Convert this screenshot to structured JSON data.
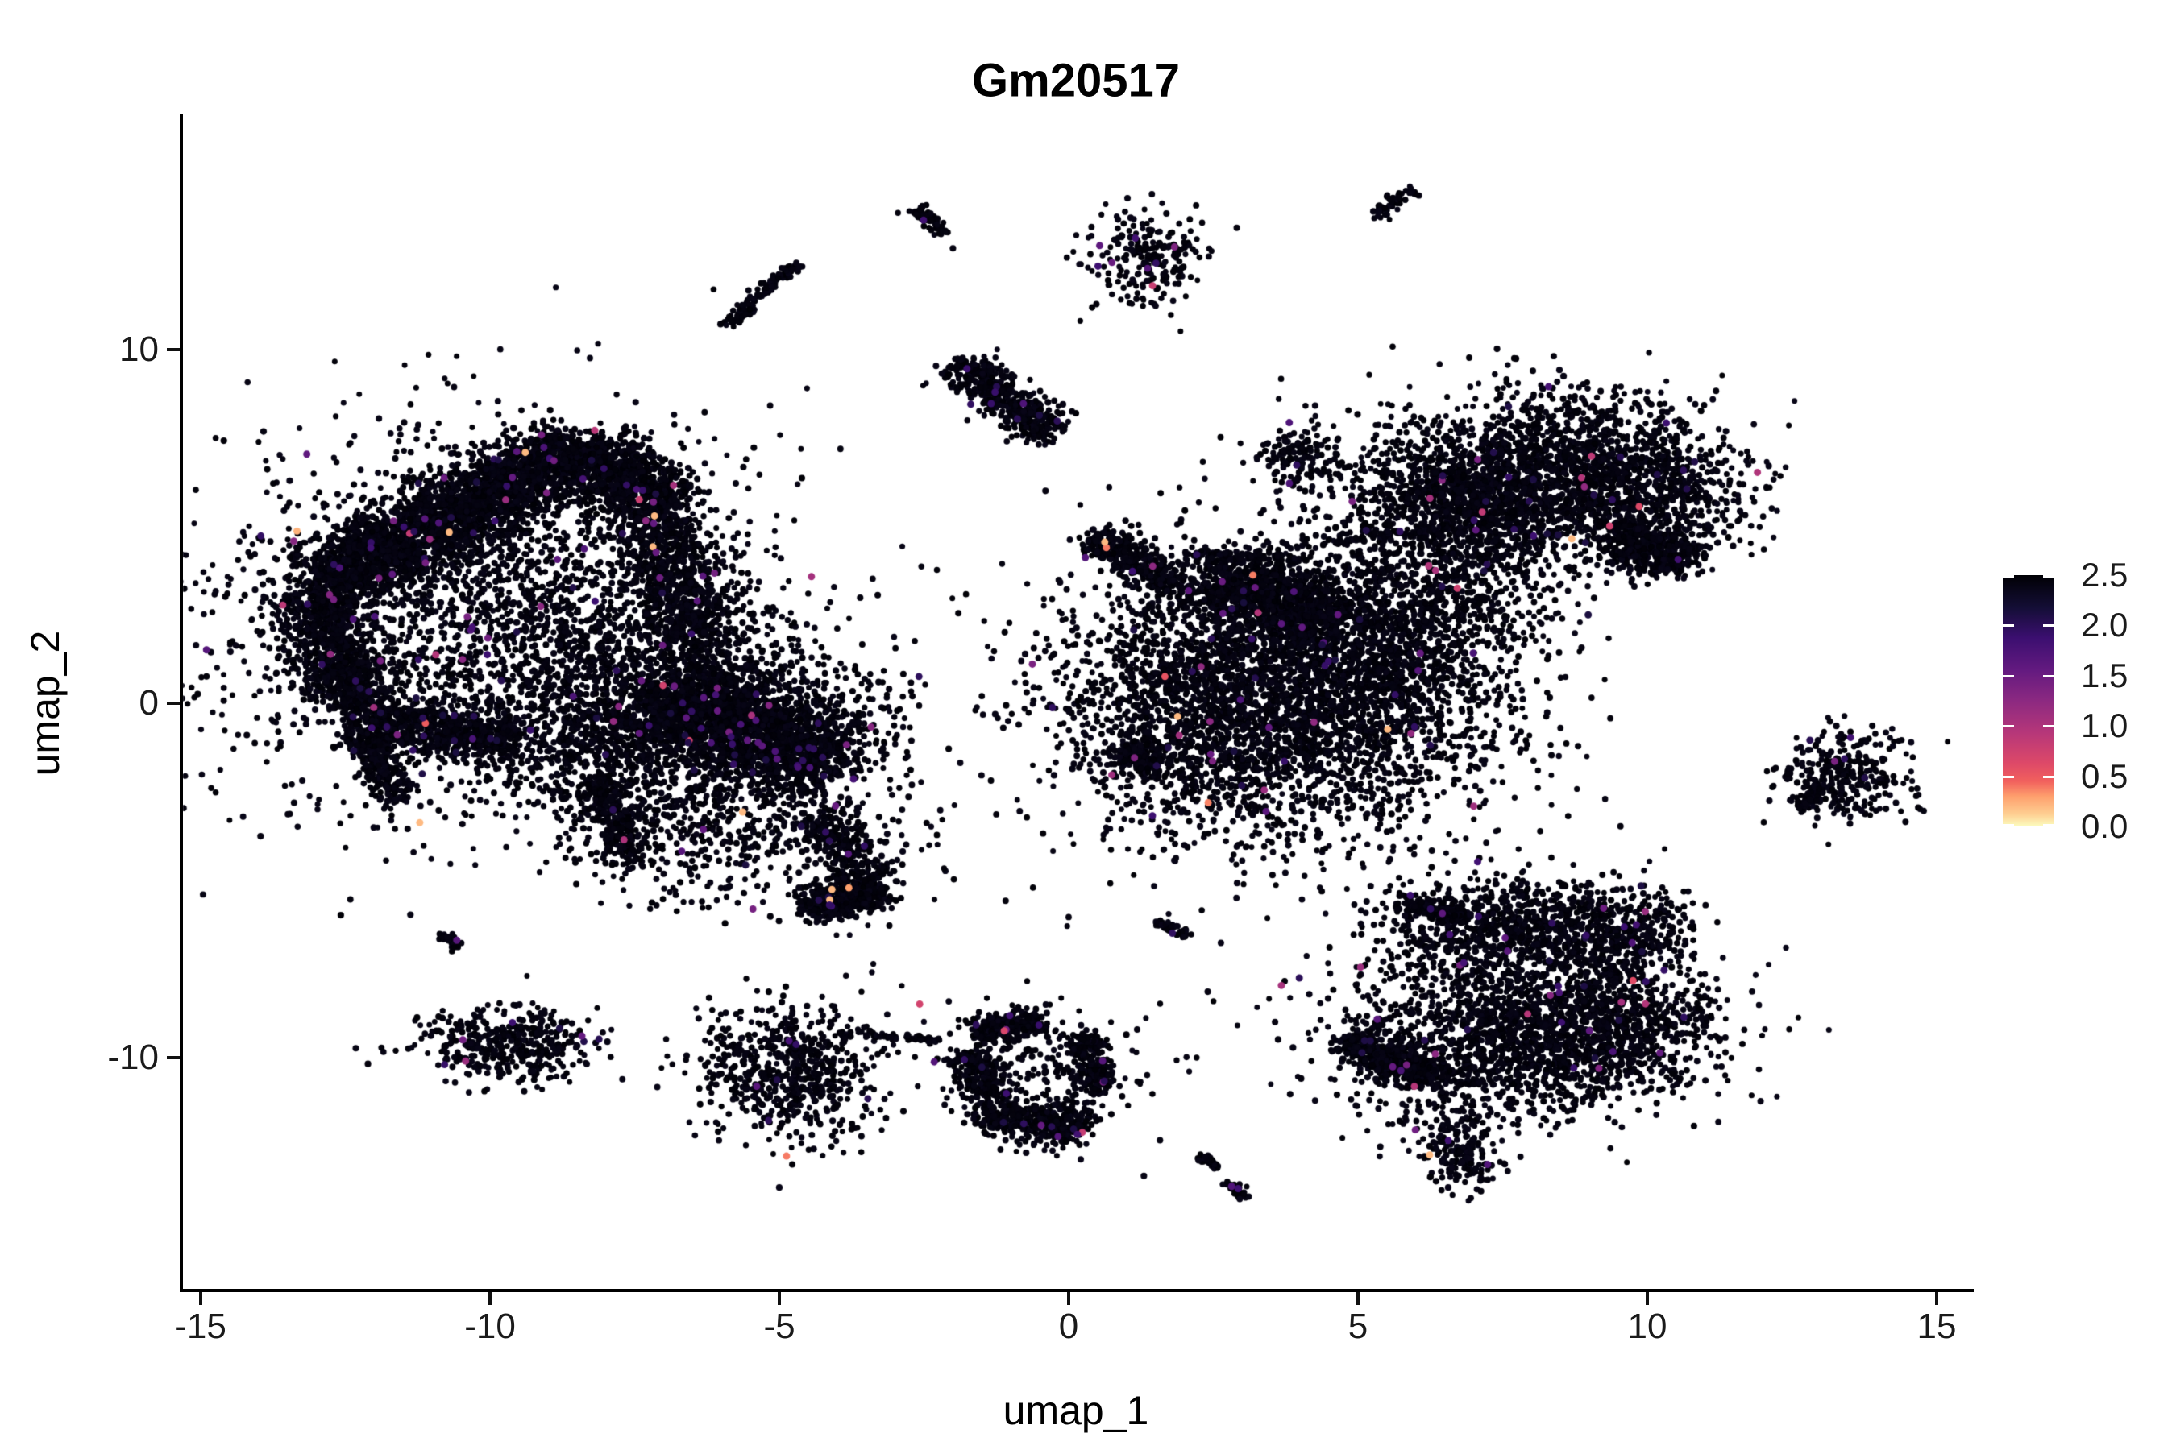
{
  "title": "Gm20517",
  "axes": {
    "x": {
      "label": "umap_1",
      "tick_labels": [
        "-15",
        "-10",
        "-5",
        "0",
        "5",
        "10",
        "15"
      ],
      "tick_values": [
        -15,
        -10,
        -5,
        0,
        5,
        10,
        15
      ]
    },
    "y": {
      "label": "umap_2",
      "tick_labels": [
        "10",
        "0",
        "-10"
      ],
      "tick_values": [
        10,
        0,
        -10
      ]
    }
  },
  "legend": {
    "tick_labels": [
      "2.5",
      "2.0",
      "1.5",
      "1.0",
      "0.5",
      "0.0"
    ],
    "tick_values": [
      2.5,
      2.0,
      1.5,
      1.0,
      0.5,
      0.0
    ],
    "min": 0.0,
    "max": 2.5,
    "colormap": "magma"
  },
  "colors": {
    "background": "#ffffff",
    "axis": "#000000",
    "tick_text": "#1a1a1a",
    "point_base": "#050210",
    "magma_stops": [
      [
        0.0,
        "#000004"
      ],
      [
        0.13,
        "#140e36"
      ],
      [
        0.25,
        "#3b0f70"
      ],
      [
        0.38,
        "#641a80"
      ],
      [
        0.5,
        "#8c2981"
      ],
      [
        0.63,
        "#b73779"
      ],
      [
        0.75,
        "#de4968"
      ],
      [
        0.82,
        "#f1605d"
      ],
      [
        0.88,
        "#fe9f6d"
      ],
      [
        0.95,
        "#fece91"
      ],
      [
        1.0,
        "#fcfdbf"
      ]
    ]
  },
  "chart_data": {
    "type": "scatter",
    "title": "Gm20517",
    "xlabel": "umap_1",
    "ylabel": "umap_2",
    "xlim": [
      -15.3,
      15.6
    ],
    "ylim": [
      -16.6,
      16.6
    ],
    "grid": false,
    "legend_position": "right",
    "expression_range": [
      0.0,
      2.5
    ],
    "colored_fraction": 0.014,
    "point_radius_px": 3.8,
    "seed": 42,
    "clusters": [
      {
        "t": "band",
        "x1": -12.9,
        "y1": 3.3,
        "x2": -8.5,
        "y2": 7.2,
        "w": 0.95,
        "n": 2600
      },
      {
        "t": "band",
        "x1": -8.5,
        "y1": 7.2,
        "x2": -6.9,
        "y2": 5.6,
        "w": 0.85,
        "n": 900
      },
      {
        "t": "band",
        "x1": -13.1,
        "y1": 3.0,
        "x2": -12.3,
        "y2": 0.0,
        "w": 0.75,
        "n": 800
      },
      {
        "t": "band",
        "x1": -12.4,
        "y1": -0.4,
        "x2": -9.6,
        "y2": -1.1,
        "w": 0.7,
        "n": 700
      },
      {
        "t": "band",
        "x1": -12.2,
        "y1": -0.9,
        "x2": -11.6,
        "y2": -2.7,
        "w": 0.4,
        "n": 260
      },
      {
        "t": "blob",
        "x": -9.9,
        "y": 2.3,
        "rx": 2.4,
        "ry": 2.7,
        "n": 2700
      },
      {
        "t": "band",
        "x1": -7.1,
        "y1": 5.3,
        "x2": -6.5,
        "y2": 1.8,
        "w": 0.85,
        "n": 700
      },
      {
        "t": "blob",
        "x": -6.4,
        "y": 0.8,
        "rx": 0.9,
        "ry": 1.2,
        "n": 500
      },
      {
        "t": "blob",
        "x": -7.9,
        "y": -1.0,
        "rx": 1.0,
        "ry": 1.4,
        "n": 900
      },
      {
        "t": "band",
        "x1": -6.9,
        "y1": 0.3,
        "x2": -4.2,
        "y2": -1.9,
        "w": 1.3,
        "n": 1700
      },
      {
        "t": "blob",
        "x": -5.3,
        "y": -0.4,
        "rx": 1.3,
        "ry": 0.9,
        "n": 600
      },
      {
        "t": "blob",
        "x": -5.2,
        "y": -3.2,
        "rx": 1.5,
        "ry": 1.1,
        "n": 420
      },
      {
        "t": "band",
        "x1": -4.4,
        "y1": -3.1,
        "x2": -3.3,
        "y2": -5.1,
        "w": 0.5,
        "n": 240
      },
      {
        "t": "band",
        "x1": -4.6,
        "y1": -5.8,
        "x2": -3.2,
        "y2": -5.3,
        "w": 0.5,
        "n": 520
      },
      {
        "t": "band",
        "x1": -8.1,
        "y1": -2.1,
        "x2": -7.5,
        "y2": -4.6,
        "w": 0.4,
        "n": 240
      },
      {
        "t": "blob",
        "x": -6.3,
        "y": -4.5,
        "rx": 0.8,
        "ry": 0.8,
        "n": 80
      },
      {
        "t": "poly",
        "pts": [
          [
            -5.85,
            10.65
          ],
          [
            -5.25,
            11.75
          ],
          [
            -4.65,
            12.4
          ]
        ],
        "w": 0.16,
        "n": 130
      },
      {
        "t": "band",
        "x1": -2.62,
        "y1": 14.0,
        "x2": -2.15,
        "y2": 13.25,
        "w": 0.14,
        "n": 55
      },
      {
        "t": "blob",
        "x": 1.35,
        "y": 12.6,
        "rx": 0.5,
        "ry": 0.7,
        "n": 230
      },
      {
        "t": "band",
        "x1": 5.3,
        "y1": 13.75,
        "x2": 5.95,
        "y2": 14.55,
        "w": 0.2,
        "n": 60
      },
      {
        "t": "band",
        "x1": -1.85,
        "y1": 9.6,
        "x2": -0.35,
        "y2": 7.6,
        "w": 0.55,
        "n": 480
      },
      {
        "t": "blob",
        "x": 8.3,
        "y": 6.7,
        "rx": 1.4,
        "ry": 1.05,
        "n": 1500
      },
      {
        "t": "blob",
        "x": 6.5,
        "y": 5.9,
        "rx": 0.9,
        "ry": 0.8,
        "n": 600
      },
      {
        "t": "blob",
        "x": 10.1,
        "y": 5.9,
        "rx": 0.85,
        "ry": 0.85,
        "n": 480
      },
      {
        "t": "band",
        "x1": 9.5,
        "y1": 4.9,
        "x2": 10.6,
        "y2": 3.9,
        "w": 0.7,
        "n": 420
      },
      {
        "t": "blob",
        "x": 7.3,
        "y": 4.9,
        "rx": 1.0,
        "ry": 0.7,
        "n": 400
      },
      {
        "t": "band",
        "x1": 0.45,
        "y1": 4.8,
        "x2": 1.8,
        "y2": 3.3,
        "w": 0.5,
        "n": 360
      },
      {
        "t": "band",
        "x1": 2.4,
        "y1": 3.7,
        "x2": 4.6,
        "y2": 2.3,
        "w": 1.0,
        "n": 900
      },
      {
        "t": "blob",
        "x": 3.7,
        "y": 0.2,
        "rx": 1.9,
        "ry": 2.0,
        "n": 3800
      },
      {
        "t": "blob",
        "x": 1.9,
        "y": 0.0,
        "rx": 0.8,
        "ry": 1.5,
        "n": 280
      },
      {
        "t": "band",
        "x1": 0.95,
        "y1": -1.35,
        "x2": 1.5,
        "y2": -1.8,
        "w": 0.3,
        "n": 150
      },
      {
        "t": "blob",
        "x": 5.5,
        "y": 0.8,
        "rx": 0.7,
        "ry": 0.7,
        "n": 250
      },
      {
        "t": "blob",
        "x": 5.9,
        "y": 2.6,
        "rx": 1.2,
        "ry": 0.95,
        "n": 650
      },
      {
        "t": "band",
        "x1": 1.9,
        "y1": 4.25,
        "x2": 4.2,
        "y2": 4.05,
        "w": 0.12,
        "n": 80
      },
      {
        "t": "band",
        "x1": 4.4,
        "y1": 4.5,
        "x2": 6.6,
        "y2": 5.0,
        "w": 0.12,
        "n": 60
      },
      {
        "t": "blob",
        "x": 4.05,
        "y": 6.9,
        "rx": 0.35,
        "ry": 0.55,
        "n": 150
      },
      {
        "t": "blob",
        "x": 6.5,
        "y": 3.6,
        "rx": 1.2,
        "ry": 0.9,
        "n": 140
      },
      {
        "t": "blob",
        "x": 13.45,
        "y": -2.0,
        "rx": 0.55,
        "ry": 0.62,
        "n": 300
      },
      {
        "t": "band",
        "x1": 12.6,
        "y1": -2.9,
        "x2": 13.05,
        "y2": -2.35,
        "w": 0.22,
        "n": 70
      },
      {
        "t": "blob",
        "x": 7.8,
        "y": -6.35,
        "rx": 1.1,
        "ry": 0.7,
        "n": 800
      },
      {
        "t": "band",
        "x1": 5.7,
        "y1": -5.7,
        "x2": 6.9,
        "y2": -6.0,
        "w": 0.3,
        "n": 140
      },
      {
        "t": "blob",
        "x": 9.75,
        "y": -6.4,
        "rx": 0.5,
        "ry": 0.6,
        "n": 280
      },
      {
        "t": "blob",
        "x": 7.9,
        "y": -9.5,
        "rx": 1.5,
        "ry": 1.05,
        "n": 1600
      },
      {
        "t": "band",
        "x1": 4.8,
        "y1": -9.5,
        "x2": 6.3,
        "y2": -10.6,
        "w": 0.55,
        "n": 450
      },
      {
        "t": "blob",
        "x": 9.5,
        "y": -8.9,
        "rx": 0.7,
        "ry": 0.9,
        "n": 420
      },
      {
        "t": "blob",
        "x": 6.8,
        "y": -12.75,
        "rx": 0.38,
        "ry": 0.5,
        "n": 170
      },
      {
        "t": "blob",
        "x": 6.4,
        "y": -11.3,
        "rx": 0.75,
        "ry": 0.8,
        "n": 80
      },
      {
        "t": "blob",
        "x": 7.6,
        "y": -7.8,
        "rx": 1.7,
        "ry": 0.9,
        "n": 280
      },
      {
        "t": "blob",
        "x": -4.85,
        "y": -10.4,
        "rx": 0.75,
        "ry": 1.0,
        "n": 650
      },
      {
        "t": "band",
        "x1": -4.0,
        "y1": -9.35,
        "x2": -2.2,
        "y2": -9.5,
        "w": 0.1,
        "n": 55
      },
      {
        "t": "band",
        "x1": -1.6,
        "y1": -9.3,
        "x2": -0.5,
        "y2": -8.95,
        "w": 0.38,
        "n": 220
      },
      {
        "t": "band",
        "x1": -1.75,
        "y1": -9.8,
        "x2": -1.35,
        "y2": -11.2,
        "w": 0.4,
        "n": 200
      },
      {
        "t": "band",
        "x1": -1.5,
        "y1": -11.65,
        "x2": 0.3,
        "y2": -11.9,
        "w": 0.55,
        "n": 430
      },
      {
        "t": "blob",
        "x": -0.5,
        "y": -10.4,
        "rx": 0.85,
        "ry": 1.0,
        "n": 260
      },
      {
        "t": "band",
        "x1": 0.25,
        "y1": -9.4,
        "x2": 0.5,
        "y2": -10.9,
        "w": 0.38,
        "n": 200
      },
      {
        "t": "band",
        "x1": 1.55,
        "y1": -6.2,
        "x2": 2.05,
        "y2": -6.55,
        "w": 0.14,
        "n": 50
      },
      {
        "t": "band",
        "x1": 2.25,
        "y1": -12.8,
        "x2": 2.6,
        "y2": -13.05,
        "w": 0.14,
        "n": 30
      },
      {
        "t": "band",
        "x1": 2.75,
        "y1": -13.55,
        "x2": 3.05,
        "y2": -13.95,
        "w": 0.14,
        "n": 35
      },
      {
        "t": "blob",
        "x": -9.7,
        "y": -9.6,
        "rx": 0.72,
        "ry": 0.5,
        "n": 420
      },
      {
        "t": "band",
        "x1": -10.85,
        "y1": -6.55,
        "x2": -10.55,
        "y2": -6.85,
        "w": 0.13,
        "n": 40
      }
    ],
    "stray_points": [
      [
        -8.85,
        -9.3
      ],
      [
        -8.45,
        -9.25
      ],
      [
        -8.05,
        -9.3
      ],
      [
        -4.78,
        -8.6
      ],
      [
        -4.82,
        -9.2
      ],
      [
        -4.9,
        -8.9
      ],
      [
        12.95,
        -1.05
      ],
      [
        13.3,
        -0.95
      ],
      [
        -2.95,
        13.85
      ],
      [
        -2.0,
        12.85
      ],
      [
        1.3,
        -13.35
      ],
      [
        5.15,
        -5.6
      ],
      [
        0.2,
        10.8
      ],
      [
        -3.4,
        -7.6
      ],
      [
        2.3,
        -5.85
      ],
      [
        -11.2,
        -2.9
      ],
      [
        0.7,
        6.1
      ],
      [
        0.2,
        5.6
      ],
      [
        -0.4,
        6.0
      ],
      [
        -2.7,
        0.2
      ],
      [
        -1.4,
        1.6
      ],
      [
        -3.0,
        -1.0
      ],
      [
        11.3,
        5.3
      ],
      [
        11.6,
        4.6
      ],
      [
        2.9,
        -5.5
      ]
    ]
  }
}
